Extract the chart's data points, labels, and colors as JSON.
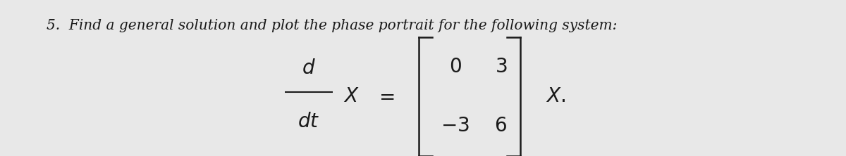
{
  "background_color": "#e8e8e8",
  "text_color": "#1a1a1a",
  "problem_number": "5.",
  "problem_text": "Find a general solution and plot the phase portrait for the following system:",
  "main_text_fontsize": 14.5,
  "math_fontsize": 20,
  "label_fontsize": 13,
  "figsize": [
    12.0,
    2.22
  ],
  "dpi": 100
}
